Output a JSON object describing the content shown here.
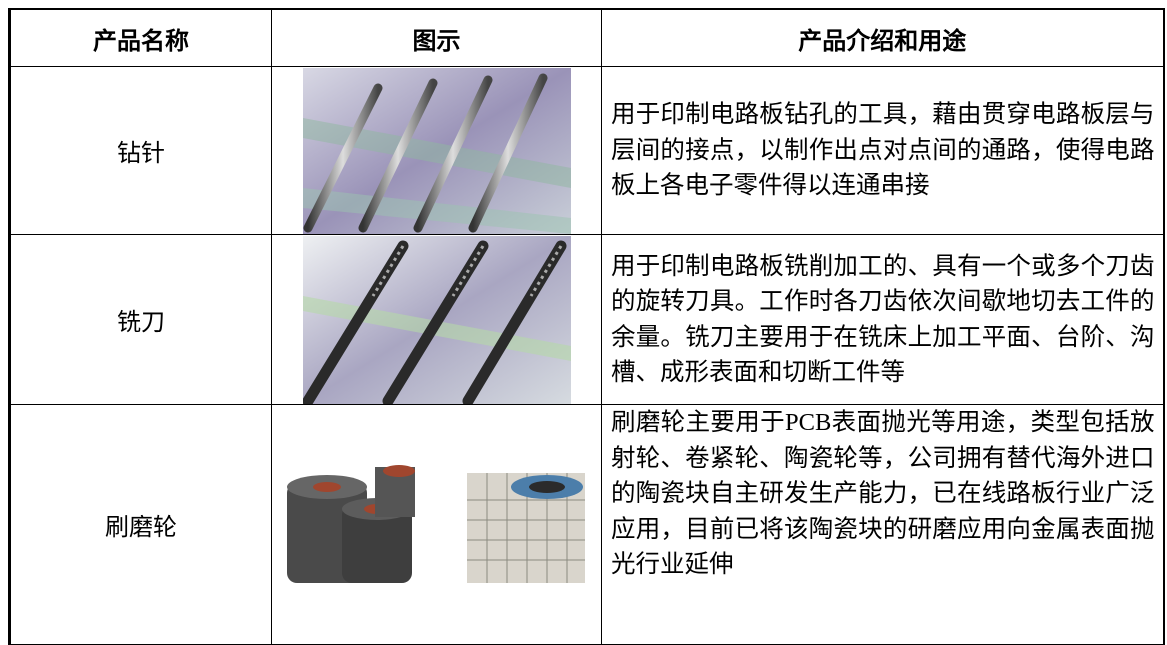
{
  "table": {
    "header": [
      "产品名称",
      "图示",
      "产品介绍和用途"
    ],
    "rows": [
      [
        "钻针",
        "用于印制电路板钻孔的工具，藉由贯穿电路板层与层间的接点，以制作出点对点间的通路，使得电路板上各电子零件得以连通串接"
      ],
      [
        "铣刀",
        "用于印制电路板铣削加工的、具有一个或多个刀齿的旋转刀具。工作时各刀齿依次间歇地切去工件的余量。铣刀主要用于在铣床上加工平面、台阶、沟槽、成形表面和切断工件等"
      ],
      [
        "刷磨轮",
        "刷磨轮主要用于PCB表面抛光等用途，类型包括放射轮、卷紧轮、陶瓷轮等，公司拥有替代海外进口的陶瓷块自主研发生产能力，已在线路板行业广泛应用，目前已将该陶瓷块的研磨应用向金属表面抛光行业延伸"
      ]
    ]
  }
}
